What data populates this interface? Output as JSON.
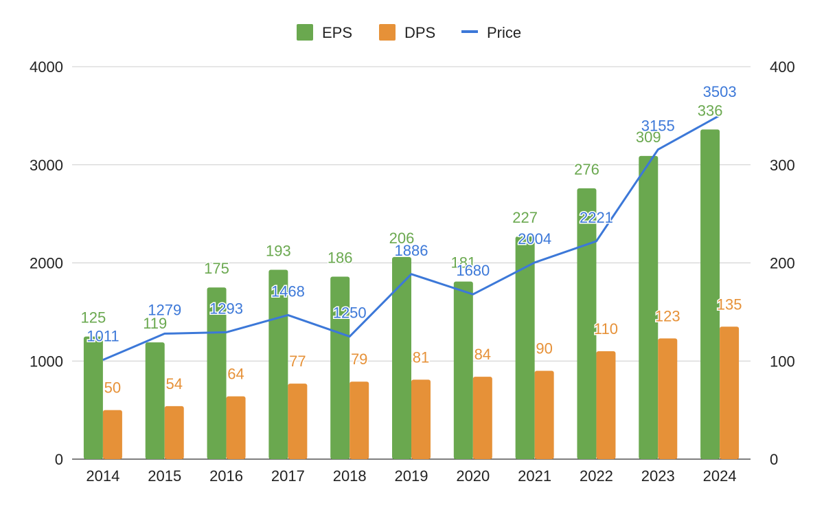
{
  "chart_data": {
    "type": "bar",
    "categories": [
      "2014",
      "2015",
      "2016",
      "2017",
      "2018",
      "2019",
      "2020",
      "2021",
      "2022",
      "2023",
      "2024"
    ],
    "series": [
      {
        "name": "EPS",
        "kind": "bar",
        "axis": "right",
        "color": "#6aa84f",
        "values": [
          125,
          119,
          175,
          193,
          186,
          206,
          181,
          227,
          276,
          309,
          336
        ],
        "labels": [
          "125",
          "119",
          "175",
          "193",
          "186",
          "206",
          "181",
          "227",
          "276",
          "309",
          "336"
        ]
      },
      {
        "name": "DPS",
        "kind": "bar",
        "axis": "right",
        "color": "#e69138",
        "values": [
          50,
          54,
          64,
          77,
          79,
          81,
          84,
          90,
          110,
          123,
          135
        ],
        "labels": [
          "50",
          "54",
          "64",
          "77",
          "79",
          "81",
          "84",
          "90",
          "110",
          "123",
          "135"
        ]
      },
      {
        "name": "Price",
        "kind": "line",
        "axis": "left",
        "color": "#3c78d8",
        "values": [
          1011,
          1279,
          1293,
          1468,
          1250,
          1886,
          1680,
          2004,
          2221,
          3155,
          3503
        ],
        "labels": [
          "1011",
          "1279",
          "1293",
          "1468",
          "1250",
          "1886",
          "1680",
          "2004",
          "2221",
          "3155",
          "3503"
        ]
      }
    ],
    "left_axis": {
      "ylim": [
        0,
        4000
      ],
      "ticks": [
        "0",
        "1000",
        "2000",
        "3000",
        "4000"
      ]
    },
    "right_axis": {
      "ylim": [
        0,
        400
      ],
      "ticks": [
        "0",
        "100",
        "200",
        "300",
        "400"
      ]
    },
    "grid": true,
    "legend": "top-center"
  }
}
